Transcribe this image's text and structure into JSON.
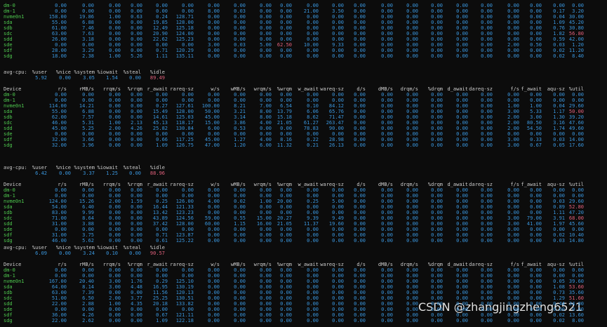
{
  "cpu_header": [
    "avg-cpu:",
    "%user",
    "%nice",
    "%system",
    "%iowait",
    "%steal",
    "%idle"
  ],
  "device_header": [
    "Device",
    "r/s",
    "rMB/s",
    "rrqm/s",
    "%rrqm",
    "r_await",
    "rareq-sz",
    "w/s",
    "wMB/s",
    "wrqm/s",
    "%wrqm",
    "w_await",
    "wareq-sz",
    "d/s",
    "dMB/s",
    "drqm/s",
    "%drqm",
    "d_await",
    "dareq-sz",
    "f/s",
    "f_await",
    "aqu-sz",
    "%util"
  ],
  "blocks": [
    {
      "rows": [
        [
          "dm-0",
          "0.00",
          "0.00",
          "0.00",
          "0.00",
          "0.00",
          "0.00",
          "0.00",
          "0.00",
          "0.00",
          "0.00",
          "0.00",
          "0.00",
          "0.00",
          "0.00",
          "0.00",
          "0.00",
          "0.00",
          "0.00",
          "0.00",
          "0.00",
          "0.00",
          "0.00"
        ],
        [
          "dm-1",
          "0.00",
          "0.00",
          "0.00",
          "0.00",
          "0.00",
          "0.00",
          "8.00",
          "0.03",
          "0.00",
          "0.00",
          "21.00",
          "3.50",
          "0.00",
          "0.00",
          "0.00",
          "0.00",
          "0.00",
          "0.00",
          "0.00",
          "0.00",
          "0.17",
          "3.20"
        ],
        [
          "nvme0n1",
          "158.00",
          "19.86",
          "1.00",
          "0.63",
          "0.24",
          "128.71",
          "0.00",
          "0.00",
          "0.00",
          "0.00",
          "0.00",
          "0.00",
          "0.00",
          "0.00",
          "0.00",
          "0.00",
          "0.00",
          "0.00",
          "0.00",
          "0.00",
          "0.04",
          "30.00"
        ],
        [
          "sda",
          "55.00",
          "6.88",
          "0.00",
          "0.00",
          "19.85",
          "128.00",
          "0.00",
          "0.00",
          "0.00",
          "0.00",
          "0.00",
          "0.00",
          "0.00",
          "0.00",
          "0.00",
          "0.00",
          "0.00",
          "0.00",
          "0.00",
          "0.00",
          "1.09",
          "45.20"
        ],
        [
          "sdb",
          "61.00",
          "7.46",
          "0.00",
          "0.00",
          "12.49",
          "125.18",
          "0.00",
          "0.00",
          "0.00",
          "0.00",
          "0.00",
          "0.00",
          "0.00",
          "0.00",
          "0.00",
          "0.00",
          "0.00",
          "0.00",
          "0.00",
          "0.00",
          "0.76",
          "30.80"
        ],
        [
          "sdc",
          "63.00",
          "7.63",
          "0.00",
          "0.00",
          "20.90",
          "124.00",
          "0.00",
          "0.00",
          "0.00",
          "0.00",
          "0.00",
          "0.00",
          "0.00",
          "0.00",
          "0.00",
          "0.00",
          "0.00",
          "0.00",
          "0.00",
          "0.00",
          "1.82",
          "56.80"
        ],
        [
          "sdd",
          "26.00",
          "3.18",
          "0.00",
          "0.00",
          "22.62",
          "125.23",
          "0.00",
          "0.00",
          "0.00",
          "0.00",
          "0.00",
          "0.00",
          "0.00",
          "0.00",
          "0.00",
          "0.00",
          "0.00",
          "0.00",
          "0.00",
          "0.00",
          "0.59",
          "42.00"
        ],
        [
          "sde",
          "0.00",
          "0.00",
          "0.00",
          "0.00",
          "0.00",
          "0.00",
          "3.00",
          "0.03",
          "5.00",
          "62.50",
          "10.00",
          "9.33",
          "0.00",
          "0.00",
          "0.00",
          "0.00",
          "0.00",
          "0.00",
          "2.00",
          "0.50",
          "0.03",
          "1.20"
        ],
        [
          "sdf",
          "28.00",
          "3.29",
          "0.00",
          "0.00",
          "0.71",
          "120.29",
          "0.00",
          "0.00",
          "0.00",
          "0.00",
          "0.00",
          "0.00",
          "0.00",
          "0.00",
          "0.00",
          "0.00",
          "0.00",
          "0.00",
          "0.00",
          "0.00",
          "0.02",
          "11.20"
        ],
        [
          "sdg",
          "18.00",
          "2.38",
          "1.00",
          "5.26",
          "1.11",
          "135.11",
          "0.00",
          "0.00",
          "0.00",
          "0.00",
          "0.00",
          "0.00",
          "0.00",
          "0.00",
          "0.00",
          "0.00",
          "0.00",
          "0.00",
          "0.00",
          "0.00",
          "0.02",
          "8.40"
        ]
      ]
    },
    {
      "cpu": [
        "5.92",
        "0.00",
        "3.05",
        "1.54",
        "0.00",
        "89.49"
      ],
      "rows": [
        [
          "dm-0",
          "0.00",
          "0.00",
          "0.00",
          "0.00",
          "0.00",
          "0.00",
          "0.00",
          "0.00",
          "0.00",
          "0.00",
          "0.00",
          "0.00",
          "0.00",
          "0.00",
          "0.00",
          "0.00",
          "0.00",
          "0.00",
          "0.00",
          "0.00",
          "0.00",
          "0.00"
        ],
        [
          "dm-1",
          "0.00",
          "0.00",
          "0.00",
          "0.00",
          "0.00",
          "0.00",
          "0.00",
          "0.00",
          "0.00",
          "0.00",
          "0.00",
          "0.00",
          "0.00",
          "0.00",
          "0.00",
          "0.00",
          "0.00",
          "0.00",
          "0.00",
          "0.00",
          "0.00",
          "0.00"
        ],
        [
          "nvme0n1",
          "114.00",
          "14.21",
          "0.00",
          "0.00",
          "0.27",
          "127.61",
          "100.00",
          "8.21",
          "7.00",
          "6.54",
          "0.10",
          "84.12",
          "0.00",
          "0.00",
          "0.00",
          "0.00",
          "0.00",
          "0.00",
          "1.00",
          "1.00",
          "0.04",
          "29.60"
        ],
        [
          "sda",
          "55.00",
          "6.88",
          "0.00",
          "0.00",
          "15.49",
          "128.00",
          "50.00",
          "3.21",
          "8.00",
          "13.79",
          "6.06",
          "65.76",
          "0.00",
          "0.00",
          "0.00",
          "0.00",
          "0.00",
          "0.00",
          "3.00",
          "5.33",
          "1.17",
          "50.00"
        ],
        [
          "sdb",
          "62.00",
          "7.57",
          "0.00",
          "0.00",
          "14.61",
          "125.03",
          "45.00",
          "3.14",
          "8.00",
          "15.18",
          "8.62",
          "71.47",
          "0.00",
          "0.00",
          "0.00",
          "0.00",
          "0.00",
          "0.00",
          "2.00",
          "3.00",
          "1.30",
          "39.20"
        ],
        [
          "sdc",
          "46.00",
          "5.31",
          "1.00",
          "2.13",
          "45.13",
          "118.17",
          "15.00",
          "3.86",
          "4.00",
          "21.05",
          "61.27",
          "263.47",
          "0.00",
          "0.00",
          "0.00",
          "0.00",
          "0.00",
          "0.00",
          "2.00",
          "80.50",
          "3.16",
          "47.60"
        ],
        [
          "sdd",
          "45.00",
          "5.25",
          "2.00",
          "4.26",
          "25.82",
          "130.84",
          "6.00",
          "0.53",
          "0.00",
          "0.00",
          "78.83",
          "90.00",
          "0.00",
          "0.00",
          "0.00",
          "0.00",
          "0.00",
          "0.00",
          "2.00",
          "54.50",
          "1.74",
          "49.60"
        ],
        [
          "sde",
          "0.00",
          "0.00",
          "0.00",
          "0.00",
          "0.00",
          "0.00",
          "0.00",
          "0.00",
          "0.00",
          "0.00",
          "0.00",
          "0.00",
          "0.00",
          "0.00",
          "0.00",
          "0.00",
          "0.00",
          "0.00",
          "0.00",
          "0.00",
          "0.00",
          "0.00"
        ],
        [
          "sdf",
          "32.00",
          "3.66",
          "0.00",
          "0.00",
          "0.66",
          "117.25",
          "45.00",
          "1.27",
          "4.00",
          "8.16",
          "0.22",
          "28.98",
          "0.00",
          "0.00",
          "0.00",
          "0.00",
          "0.00",
          "0.00",
          "3.00",
          "0.33",
          "0.03",
          "14.00"
        ],
        [
          "sdg",
          "32.00",
          "3.96",
          "0.00",
          "0.00",
          "1.09",
          "126.75",
          "47.00",
          "1.20",
          "6.00",
          "11.32",
          "0.21",
          "26.13",
          "0.00",
          "0.00",
          "0.00",
          "0.00",
          "0.00",
          "0.00",
          "3.00",
          "0.67",
          "0.05",
          "17.60"
        ]
      ]
    },
    {
      "cpu": [
        "6.42",
        "0.00",
        "3.37",
        "1.25",
        "0.00",
        "88.96"
      ],
      "rows": [
        [
          "dm-0",
          "0.00",
          "0.00",
          "0.00",
          "0.00",
          "0.00",
          "0.00",
          "0.00",
          "0.00",
          "0.00",
          "0.00",
          "0.00",
          "0.00",
          "0.00",
          "0.00",
          "0.00",
          "0.00",
          "0.00",
          "0.00",
          "0.00",
          "0.00",
          "0.00",
          "0.00"
        ],
        [
          "dm-1",
          "0.00",
          "0.00",
          "0.00",
          "0.00",
          "0.00",
          "0.00",
          "0.00",
          "0.00",
          "0.00",
          "0.00",
          "0.00",
          "0.00",
          "0.00",
          "0.00",
          "0.00",
          "0.00",
          "0.00",
          "0.00",
          "0.00",
          "0.00",
          "0.00",
          "0.00"
        ],
        [
          "nvme0n1",
          "124.00",
          "15.26",
          "2.00",
          "1.59",
          "0.25",
          "126.00",
          "4.00",
          "0.02",
          "1.00",
          "20.00",
          "0.25",
          "5.00",
          "0.00",
          "0.00",
          "0.00",
          "0.00",
          "0.00",
          "0.00",
          "0.00",
          "0.00",
          "0.03",
          "29.60"
        ],
        [
          "sda",
          "54.00",
          "6.40",
          "0.00",
          "0.00",
          "16.44",
          "121.33",
          "0.00",
          "0.00",
          "0.00",
          "0.00",
          "0.00",
          "0.00",
          "0.00",
          "0.00",
          "0.00",
          "0.00",
          "0.00",
          "0.00",
          "0.00",
          "0.00",
          "0.89",
          "52.80"
        ],
        [
          "sdb",
          "83.00",
          "9.99",
          "0.00",
          "0.00",
          "13.42",
          "123.23",
          "0.00",
          "0.00",
          "0.00",
          "0.00",
          "0.00",
          "0.00",
          "0.00",
          "0.00",
          "0.00",
          "0.00",
          "0.00",
          "0.00",
          "0.00",
          "0.00",
          "1.11",
          "47.20"
        ],
        [
          "sdc",
          "71.00",
          "8.64",
          "0.00",
          "0.00",
          "43.89",
          "124.56",
          "59.00",
          "0.55",
          "15.00",
          "20.27",
          "9.39",
          "9.49",
          "0.00",
          "0.00",
          "0.00",
          "0.00",
          "0.00",
          "0.00",
          "3.00",
          "79.00",
          "3.91",
          "68.00"
        ],
        [
          "sdd",
          "31.00",
          "3.88",
          "0.00",
          "0.00",
          "37.42",
          "128.00",
          "60.00",
          "1.15",
          "16.00",
          "21.05",
          "11.37",
          "19.60",
          "0.00",
          "0.00",
          "0.00",
          "0.00",
          "0.00",
          "0.00",
          "3.00",
          "41.00",
          "1.97",
          "45.60"
        ],
        [
          "sde",
          "0.00",
          "0.00",
          "0.00",
          "0.00",
          "0.00",
          "0.00",
          "0.00",
          "0.00",
          "0.00",
          "0.00",
          "0.00",
          "0.00",
          "0.00",
          "0.00",
          "0.00",
          "0.00",
          "0.00",
          "0.00",
          "0.00",
          "0.00",
          "0.00",
          "0.00"
        ],
        [
          "sdf",
          "31.00",
          "3.75",
          "0.00",
          "0.00",
          "0.71",
          "123.87",
          "0.00",
          "0.00",
          "0.00",
          "0.00",
          "0.00",
          "0.00",
          "0.00",
          "0.00",
          "0.00",
          "0.00",
          "0.00",
          "0.00",
          "0.00",
          "0.00",
          "0.02",
          "10.40"
        ],
        [
          "sdg",
          "46.00",
          "5.62",
          "0.00",
          "0.00",
          "0.61",
          "125.22",
          "0.00",
          "0.00",
          "0.00",
          "0.00",
          "0.00",
          "0.00",
          "0.00",
          "0.00",
          "0.00",
          "0.00",
          "0.00",
          "0.00",
          "0.00",
          "0.00",
          "0.03",
          "14.80"
        ]
      ]
    },
    {
      "cpu": [
        "6.09",
        "0.00",
        "3.24",
        "0.10",
        "0.00",
        "90.57"
      ],
      "rows": [
        [
          "dm-0",
          "0.00",
          "0.00",
          "0.00",
          "0.00",
          "0.00",
          "0.00",
          "0.00",
          "0.00",
          "0.00",
          "0.00",
          "0.00",
          "0.00",
          "0.00",
          "0.00",
          "0.00",
          "0.00",
          "0.00",
          "0.00",
          "0.00",
          "0.00",
          "0.00",
          "0.00"
        ],
        [
          "dm-1",
          "0.00",
          "0.00",
          "0.00",
          "0.00",
          "0.00",
          "0.00",
          "0.00",
          "0.00",
          "0.00",
          "0.00",
          "0.00",
          "0.00",
          "0.00",
          "0.00",
          "0.00",
          "0.00",
          "0.00",
          "0.00",
          "0.00",
          "0.00",
          "0.00",
          "0.00"
        ],
        [
          "nvme0n1",
          "167.00",
          "20.40",
          "3.00",
          "1.76",
          "0.29",
          "125.10",
          "0.00",
          "0.00",
          "0.00",
          "0.00",
          "0.00",
          "0.00",
          "0.00",
          "0.00",
          "0.00",
          "0.00",
          "0.00",
          "0.00",
          "0.00",
          "0.00",
          "0.05",
          "39.60"
        ],
        [
          "sda",
          "64.00",
          "8.14",
          "3.00",
          "4.48",
          "16.95",
          "130.19",
          "0.00",
          "0.00",
          "0.00",
          "0.00",
          "0.00",
          "0.00",
          "0.00",
          "0.00",
          "0.00",
          "0.00",
          "0.00",
          "0.00",
          "0.00",
          "0.00",
          "1.08",
          "53.60"
        ],
        [
          "sdb",
          "63.00",
          "7.39",
          "0.00",
          "0.00",
          "11.56",
          "120.13",
          "0.00",
          "0.00",
          "0.00",
          "0.00",
          "0.00",
          "0.00",
          "0.00",
          "0.00",
          "0.00",
          "0.00",
          "0.00",
          "0.00",
          "0.00",
          "0.00",
          "0.73",
          "35.60"
        ],
        [
          "sdc",
          "51.00",
          "6.50",
          "2.00",
          "3.77",
          "25.25",
          "130.51",
          "0.00",
          "0.00",
          "0.00",
          "0.00",
          "0.00",
          "0.00",
          "0.00",
          "0.00",
          "0.00",
          "0.00",
          "0.00",
          "0.00",
          "0.00",
          "0.00",
          "1.29",
          "51.60"
        ],
        [
          "sdd",
          "22.00",
          "2.88",
          "1.00",
          "4.35",
          "20.18",
          "133.82",
          "0.00",
          "0.00",
          "0.00",
          "0.00",
          "0.00",
          "0.00",
          "0.00",
          "0.00",
          "0.00",
          "0.00",
          "0.00",
          "0.00",
          "0.00",
          "0.00",
          "0.44",
          "34.00"
        ],
        [
          "sde",
          "0.00",
          "0.00",
          "0.00",
          "0.00",
          "0.00",
          "0.00",
          "0.00",
          "0.00",
          "0.00",
          "0.00",
          "0.00",
          "0.00",
          "0.00",
          "0.00",
          "0.00",
          "0.00",
          "0.00",
          "0.00",
          "0.00",
          "0.00",
          "0.00",
          "0.00"
        ],
        [
          "sdf",
          "36.00",
          "4.26",
          "0.00",
          "0.00",
          "0.67",
          "121.11",
          "0.00",
          "0.00",
          "0.00",
          "0.00",
          "0.00",
          "0.00",
          "0.00",
          "0.00",
          "0.00",
          "0.00",
          "0.00",
          "0.00",
          "0.00",
          "0.00",
          "0.02",
          "13.60"
        ],
        [
          "sdg",
          "22.00",
          "2.62",
          "0.00",
          "0.00",
          "1.09",
          "122.18",
          "0.00",
          "0.00",
          "0.00",
          "0.00",
          "0.00",
          "0.00",
          "0.00",
          "0.00",
          "0.00",
          "0.00",
          "0.00",
          "0.00",
          "0.00",
          "0.00",
          "0.02",
          "8.00"
        ]
      ]
    }
  ],
  "watermark": "CSDN @zhangjingzheng6521"
}
